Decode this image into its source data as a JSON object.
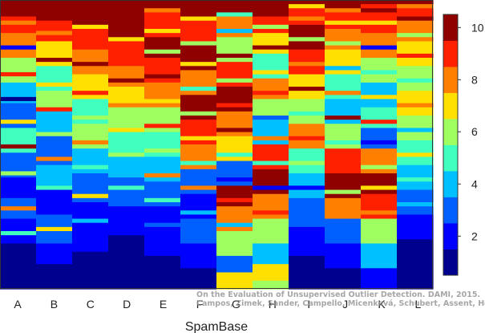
{
  "chart_data": {
    "type": "heatmap",
    "title": "",
    "xlabel": "SpamBase",
    "ylabel": "",
    "categories": [
      "A",
      "B",
      "C",
      "D",
      "E",
      "F",
      "G",
      "H",
      "I",
      "J",
      "K",
      "L"
    ],
    "colorbar": {
      "range": [
        0.5,
        10.5
      ],
      "ticks": [
        2,
        4,
        6,
        8,
        10
      ],
      "levels": 10,
      "colormap": "jet"
    },
    "rows_top_to_bottom": 140,
    "columns_top_to_bottom": [
      {
        "name": "A",
        "blocks": [
          [
            0,
            10
          ],
          [
            8,
            9
          ],
          [
            16,
            8
          ],
          [
            28,
            6
          ],
          [
            40,
            4
          ],
          [
            50,
            3
          ],
          [
            62,
            5
          ],
          [
            74,
            3
          ],
          [
            86,
            2
          ],
          [
            96,
            3
          ],
          [
            106,
            2
          ],
          [
            118,
            1
          ],
          [
            128,
            1
          ]
        ],
        "stripes": [
          [
            10,
            8
          ],
          [
            22,
            2
          ],
          [
            35,
            9
          ],
          [
            47,
            1
          ],
          [
            58,
            7
          ],
          [
            70,
            10
          ],
          [
            83,
            6
          ],
          [
            100,
            8
          ],
          [
            112,
            5
          ]
        ]
      },
      {
        "name": "B",
        "blocks": [
          [
            0,
            10
          ],
          [
            10,
            9
          ],
          [
            20,
            7
          ],
          [
            32,
            5
          ],
          [
            44,
            6
          ],
          [
            54,
            4
          ],
          [
            66,
            3
          ],
          [
            80,
            4
          ],
          [
            92,
            2
          ],
          [
            104,
            3
          ],
          [
            118,
            2
          ],
          [
            128,
            1
          ]
        ],
        "stripes": [
          [
            15,
            8
          ],
          [
            28,
            10
          ],
          [
            40,
            7
          ],
          [
            52,
            9
          ],
          [
            64,
            6
          ],
          [
            76,
            8
          ],
          [
            90,
            5
          ],
          [
            110,
            7
          ]
        ]
      },
      {
        "name": "C",
        "blocks": [
          [
            0,
            10
          ],
          [
            14,
            9
          ],
          [
            24,
            8
          ],
          [
            36,
            7
          ],
          [
            48,
            5
          ],
          [
            60,
            6
          ],
          [
            72,
            4
          ],
          [
            84,
            3
          ],
          [
            98,
            2
          ],
          [
            110,
            2
          ],
          [
            122,
            1
          ],
          [
            132,
            1
          ]
        ],
        "stripes": [
          [
            12,
            7
          ],
          [
            30,
            10
          ],
          [
            44,
            9
          ],
          [
            56,
            6
          ],
          [
            68,
            8
          ],
          [
            80,
            5
          ],
          [
            94,
            7
          ],
          [
            106,
            4
          ]
        ]
      },
      {
        "name": "D",
        "blocks": [
          [
            0,
            10
          ],
          [
            20,
            9
          ],
          [
            32,
            8
          ],
          [
            42,
            7
          ],
          [
            52,
            6
          ],
          [
            64,
            5
          ],
          [
            76,
            4
          ],
          [
            86,
            3
          ],
          [
            100,
            2
          ],
          [
            114,
            1
          ],
          [
            128,
            1
          ]
        ],
        "stripes": [
          [
            18,
            7
          ],
          [
            28,
            9
          ],
          [
            38,
            10
          ],
          [
            50,
            8
          ],
          [
            62,
            7
          ],
          [
            74,
            6
          ],
          [
            90,
            5
          ]
        ]
      },
      {
        "name": "E",
        "blocks": [
          [
            0,
            10
          ],
          [
            6,
            9
          ],
          [
            18,
            10
          ],
          [
            28,
            9
          ],
          [
            40,
            8
          ],
          [
            52,
            6
          ],
          [
            64,
            5
          ],
          [
            76,
            4
          ],
          [
            88,
            3
          ],
          [
            100,
            2
          ],
          [
            112,
            2
          ],
          [
            124,
            1
          ]
        ],
        "stripes": [
          [
            4,
            8
          ],
          [
            14,
            7
          ],
          [
            24,
            6
          ],
          [
            36,
            10
          ],
          [
            48,
            7
          ],
          [
            60,
            9
          ],
          [
            72,
            6
          ],
          [
            84,
            8
          ],
          [
            96,
            5
          ],
          [
            108,
            3
          ]
        ]
      },
      {
        "name": "F",
        "blocks": [
          [
            0,
            10
          ],
          [
            10,
            9
          ],
          [
            22,
            10
          ],
          [
            34,
            8
          ],
          [
            46,
            10
          ],
          [
            58,
            9
          ],
          [
            70,
            8
          ],
          [
            82,
            3
          ],
          [
            94,
            2
          ],
          [
            106,
            3
          ],
          [
            118,
            2
          ],
          [
            130,
            1
          ]
        ],
        "stripes": [
          [
            8,
            7
          ],
          [
            20,
            6
          ],
          [
            30,
            7
          ],
          [
            42,
            5
          ],
          [
            54,
            6
          ],
          [
            66,
            7
          ],
          [
            78,
            5
          ],
          [
            90,
            8
          ],
          [
            102,
            4
          ]
        ]
      },
      {
        "name": "G",
        "blocks": [
          [
            0,
            10
          ],
          [
            8,
            8
          ],
          [
            18,
            6
          ],
          [
            30,
            9
          ],
          [
            42,
            10
          ],
          [
            54,
            8
          ],
          [
            66,
            7
          ],
          [
            78,
            3
          ],
          [
            90,
            10
          ],
          [
            100,
            8
          ],
          [
            112,
            6
          ],
          [
            124,
            3
          ],
          [
            132,
            7
          ]
        ],
        "stripes": [
          [
            6,
            5
          ],
          [
            14,
            4
          ],
          [
            26,
            10
          ],
          [
            38,
            6
          ],
          [
            50,
            9
          ],
          [
            62,
            10
          ],
          [
            74,
            5
          ],
          [
            86,
            2
          ],
          [
            96,
            9
          ],
          [
            108,
            4
          ]
        ]
      },
      {
        "name": "H",
        "blocks": [
          [
            0,
            10
          ],
          [
            8,
            9
          ],
          [
            16,
            7
          ],
          [
            26,
            5
          ],
          [
            38,
            8
          ],
          [
            48,
            6
          ],
          [
            58,
            4
          ],
          [
            70,
            9
          ],
          [
            82,
            10
          ],
          [
            94,
            8
          ],
          [
            106,
            6
          ],
          [
            118,
            4
          ],
          [
            128,
            7
          ],
          [
            136,
            6
          ]
        ],
        "stripes": [
          [
            12,
            6
          ],
          [
            22,
            10
          ],
          [
            34,
            7
          ],
          [
            44,
            9
          ],
          [
            56,
            3
          ],
          [
            66,
            8
          ],
          [
            78,
            5
          ],
          [
            90,
            2
          ],
          [
            102,
            9
          ]
        ]
      },
      {
        "name": "I",
        "blocks": [
          [
            0,
            10
          ],
          [
            4,
            9
          ],
          [
            12,
            10
          ],
          [
            24,
            9
          ],
          [
            36,
            7
          ],
          [
            48,
            6
          ],
          [
            60,
            8
          ],
          [
            72,
            5
          ],
          [
            84,
            4
          ],
          [
            96,
            3
          ],
          [
            110,
            2
          ],
          [
            124,
            1
          ]
        ],
        "stripes": [
          [
            2,
            7
          ],
          [
            8,
            8
          ],
          [
            18,
            6
          ],
          [
            30,
            8
          ],
          [
            42,
            10
          ],
          [
            54,
            5
          ],
          [
            66,
            9
          ],
          [
            78,
            6
          ],
          [
            90,
            2
          ]
        ]
      },
      {
        "name": "J",
        "blocks": [
          [
            0,
            10
          ],
          [
            6,
            9
          ],
          [
            14,
            8
          ],
          [
            24,
            7
          ],
          [
            36,
            5
          ],
          [
            48,
            4
          ],
          [
            60,
            6
          ],
          [
            72,
            9
          ],
          [
            84,
            10
          ],
          [
            96,
            8
          ],
          [
            106,
            3
          ],
          [
            118,
            2
          ],
          [
            130,
            1
          ]
        ],
        "stripes": [
          [
            4,
            8
          ],
          [
            10,
            7
          ],
          [
            20,
            6
          ],
          [
            32,
            4
          ],
          [
            44,
            8
          ],
          [
            56,
            10
          ],
          [
            68,
            5
          ],
          [
            80,
            9
          ],
          [
            92,
            6
          ]
        ]
      },
      {
        "name": "K",
        "blocks": [
          [
            0,
            10
          ],
          [
            6,
            9
          ],
          [
            16,
            8
          ],
          [
            28,
            6
          ],
          [
            40,
            4
          ],
          [
            52,
            5
          ],
          [
            62,
            3
          ],
          [
            72,
            8
          ],
          [
            84,
            10
          ],
          [
            94,
            9
          ],
          [
            106,
            6
          ],
          [
            118,
            4
          ],
          [
            130,
            2
          ]
        ],
        "stripes": [
          [
            2,
            9
          ],
          [
            10,
            7
          ],
          [
            22,
            2
          ],
          [
            34,
            5
          ],
          [
            46,
            7
          ],
          [
            58,
            9
          ],
          [
            68,
            2
          ],
          [
            80,
            6
          ],
          [
            90,
            7
          ],
          [
            102,
            8
          ]
        ]
      },
      {
        "name": "L",
        "blocks": [
          [
            0,
            10
          ],
          [
            4,
            9
          ],
          [
            10,
            8
          ],
          [
            20,
            7
          ],
          [
            32,
            6
          ],
          [
            44,
            7
          ],
          [
            56,
            6
          ],
          [
            68,
            5
          ],
          [
            80,
            4
          ],
          [
            92,
            3
          ],
          [
            104,
            2
          ],
          [
            116,
            1
          ],
          [
            130,
            1
          ]
        ],
        "stripes": [
          [
            2,
            8
          ],
          [
            8,
            10
          ],
          [
            16,
            6
          ],
          [
            26,
            9
          ],
          [
            38,
            5
          ],
          [
            50,
            8
          ],
          [
            62,
            4
          ],
          [
            74,
            7
          ],
          [
            86,
            5
          ],
          [
            98,
            4
          ]
        ]
      }
    ]
  },
  "watermark": {
    "line1": "On the Evaluation of Unsupervised Outlier Detection. DAMI, 2015.",
    "line2": "Campos, Zimek, Sander, Campello, Micenková, Schubert, Assent, Houle"
  }
}
